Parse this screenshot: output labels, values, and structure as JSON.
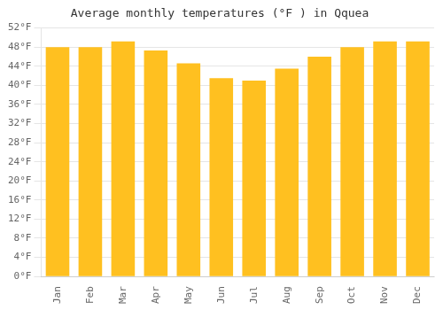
{
  "chart_data": {
    "type": "bar",
    "title": "Average monthly temperatures (°F ) in Qquea",
    "categories": [
      "Jan",
      "Feb",
      "Mar",
      "Apr",
      "May",
      "Jun",
      "Jul",
      "Aug",
      "Sep",
      "Oct",
      "Nov",
      "Dec"
    ],
    "values": [
      48.0,
      48.0,
      49.2,
      47.3,
      44.6,
      41.5,
      41.0,
      43.5,
      46.0,
      48.0,
      49.2,
      49.2
    ],
    "color": "#FFC020",
    "ylim": [
      0,
      52
    ],
    "yticks": [
      {
        "value": 0,
        "label": "0°F"
      },
      {
        "value": 4,
        "label": "4°F"
      },
      {
        "value": 8,
        "label": "8°F"
      },
      {
        "value": 12,
        "label": "12°F"
      },
      {
        "value": 16,
        "label": "16°F"
      },
      {
        "value": 20,
        "label": "20°F"
      },
      {
        "value": 24,
        "label": "24°F"
      },
      {
        "value": 28,
        "label": "28°F"
      },
      {
        "value": 32,
        "label": "32°F"
      },
      {
        "value": 36,
        "label": "36°F"
      },
      {
        "value": 40,
        "label": "40°F"
      },
      {
        "value": 44,
        "label": "44°F"
      },
      {
        "value": 48,
        "label": "48°F"
      },
      {
        "value": 52,
        "label": "52°F"
      }
    ],
    "grid": true
  }
}
